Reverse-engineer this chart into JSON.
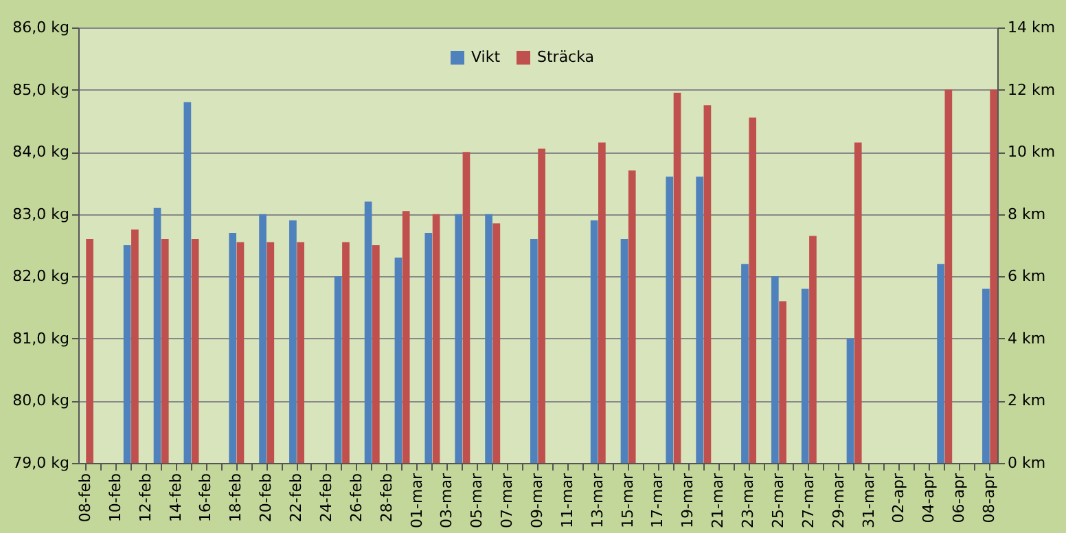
{
  "chart_data": {
    "type": "bar",
    "categories": [
      "08-feb",
      null,
      "10-feb",
      null,
      "12-feb",
      null,
      "14-feb",
      null,
      "16-feb",
      null,
      "18-feb",
      null,
      "20-feb",
      null,
      "22-feb",
      null,
      "24-feb",
      null,
      "26-feb",
      null,
      "28-feb",
      null,
      "01-mar",
      null,
      "03-mar",
      null,
      "05-mar",
      null,
      "07-mar",
      null,
      "09-mar",
      null,
      "11-mar",
      null,
      "13-mar",
      null,
      "15-mar",
      null,
      "17-mar",
      null,
      "19-mar",
      null,
      "21-mar",
      null,
      "23-mar",
      null,
      "25-mar",
      null,
      "27-mar",
      null,
      "29-mar",
      null,
      "31-mar",
      null,
      "02-apr",
      null,
      "04-apr",
      null,
      "06-apr",
      null,
      "08-apr"
    ],
    "series": [
      {
        "name": "Vikt",
        "color": "#4f81bd",
        "values": [
          null,
          null,
          null,
          82.5,
          null,
          83.1,
          null,
          84.8,
          null,
          null,
          82.7,
          null,
          83.0,
          null,
          82.9,
          null,
          null,
          82.0,
          null,
          83.2,
          null,
          82.3,
          null,
          82.7,
          null,
          83.0,
          null,
          83.0,
          null,
          null,
          82.6,
          null,
          null,
          null,
          82.9,
          null,
          82.6,
          null,
          null,
          83.6,
          null,
          83.6,
          null,
          null,
          82.2,
          null,
          82.0,
          null,
          81.8,
          null,
          null,
          81.0,
          null,
          null,
          null,
          null,
          null,
          82.2,
          null,
          null,
          81.8
        ]
      },
      {
        "name": "Sträcka",
        "color": "#c0504d",
        "axis": "y2",
        "values": [
          7.2,
          null,
          null,
          7.5,
          null,
          7.2,
          null,
          7.2,
          null,
          null,
          7.1,
          null,
          7.1,
          null,
          7.1,
          null,
          null,
          7.1,
          null,
          7.0,
          null,
          8.1,
          null,
          8.0,
          null,
          10.0,
          null,
          7.7,
          null,
          null,
          10.1,
          null,
          null,
          null,
          10.3,
          null,
          9.4,
          null,
          null,
          11.9,
          null,
          11.5,
          null,
          null,
          11.1,
          null,
          5.2,
          null,
          7.3,
          null,
          null,
          10.3,
          null,
          null,
          null,
          null,
          null,
          12.0,
          null,
          null,
          12.0
        ]
      }
    ],
    "ylim": [
      79,
      86
    ],
    "yticks": [
      {
        "value": 79,
        "label": "79,0 kg"
      },
      {
        "value": 80,
        "label": "80,0 kg"
      },
      {
        "value": 81,
        "label": "81,0 kg"
      },
      {
        "value": 82,
        "label": "82,0 kg"
      },
      {
        "value": 83,
        "label": "83,0 kg"
      },
      {
        "value": 84,
        "label": "84,0 kg"
      },
      {
        "value": 85,
        "label": "85,0 kg"
      },
      {
        "value": 86,
        "label": "86,0 kg"
      }
    ],
    "y2lim": [
      0,
      14
    ],
    "y2ticks": [
      {
        "value": 0,
        "label": "0 km"
      },
      {
        "value": 2,
        "label": "2 km"
      },
      {
        "value": 4,
        "label": "4 km"
      },
      {
        "value": 6,
        "label": "6 km"
      },
      {
        "value": 8,
        "label": "8 km"
      },
      {
        "value": 10,
        "label": "10 km"
      },
      {
        "value": 12,
        "label": "12 km"
      },
      {
        "value": 14,
        "label": "14 km"
      }
    ],
    "grid": "y",
    "legend": "top"
  }
}
